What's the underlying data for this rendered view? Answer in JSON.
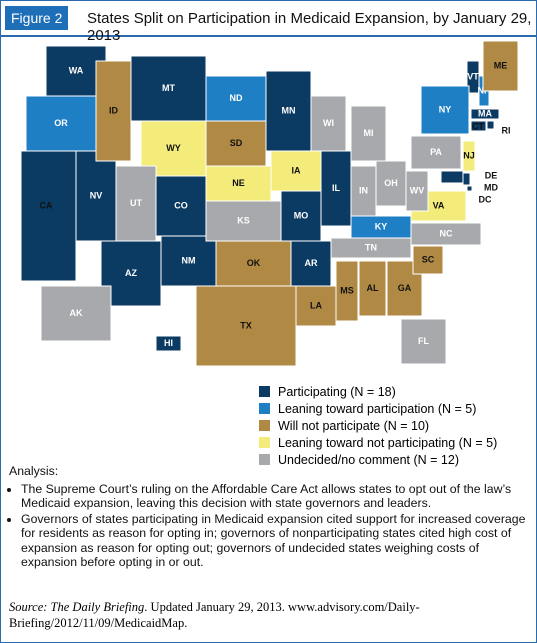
{
  "header": {
    "figure": "Figure 2",
    "title": "States Split on Participation in Medicaid Expansion, by January 29, 2013"
  },
  "map": {
    "legend": [
      {
        "label": "Participating (N = 18)",
        "color": "#0b3a63",
        "states": [
          "WA",
          "CA",
          "NV",
          "AZ",
          "NM",
          "CO",
          "MT",
          "MN",
          "IL",
          "MO",
          "AR",
          "HI",
          "VT",
          "MA",
          "RI",
          "CT",
          "MD",
          "DE",
          "DC"
        ]
      },
      {
        "label": "Leaning toward participation (N = 5)",
        "color": "#1f7fc4",
        "states": [
          "OR",
          "ND",
          "KY",
          "NY",
          "NH"
        ]
      },
      {
        "label": "Will not participate (N = 10)",
        "color": "#b08a45",
        "states": [
          "ID",
          "SD",
          "OK",
          "TX",
          "LA",
          "MS",
          "AL",
          "GA",
          "SC",
          "ME"
        ]
      },
      {
        "label": "Leaning toward not participating (N = 5)",
        "color": "#f3ec7a",
        "states": [
          "WY",
          "NE",
          "IA",
          "VA",
          "NJ"
        ]
      },
      {
        "label": "Undecided/no comment (N = 12)",
        "color": "#a7a9ac",
        "states": [
          "UT",
          "KS",
          "WI",
          "MI",
          "IN",
          "OH",
          "WV",
          "PA",
          "TN",
          "NC",
          "FL",
          "AK"
        ]
      }
    ]
  },
  "analysis": {
    "heading": "Analysis:",
    "bullets": [
      "The Supreme Court’s ruling on the Affordable Care Act allows states to opt out of the law’s Medicaid expansion, leaving this decision with state governors and leaders.",
      "Governors of states participating in Medicaid expansion cited support for increased coverage for residents as reason for opting in; governors of nonparticipating states cited high cost of expansion as reason for opting out; governors of undecided states weighing costs of expansion before opting in or out."
    ]
  },
  "source": {
    "label": "Source:",
    "title": "The Daily Briefing",
    "text": ". Updated January 29, 2013. www.advisory.com/Daily-Briefing/2012/11/09/MedicaidMap."
  }
}
